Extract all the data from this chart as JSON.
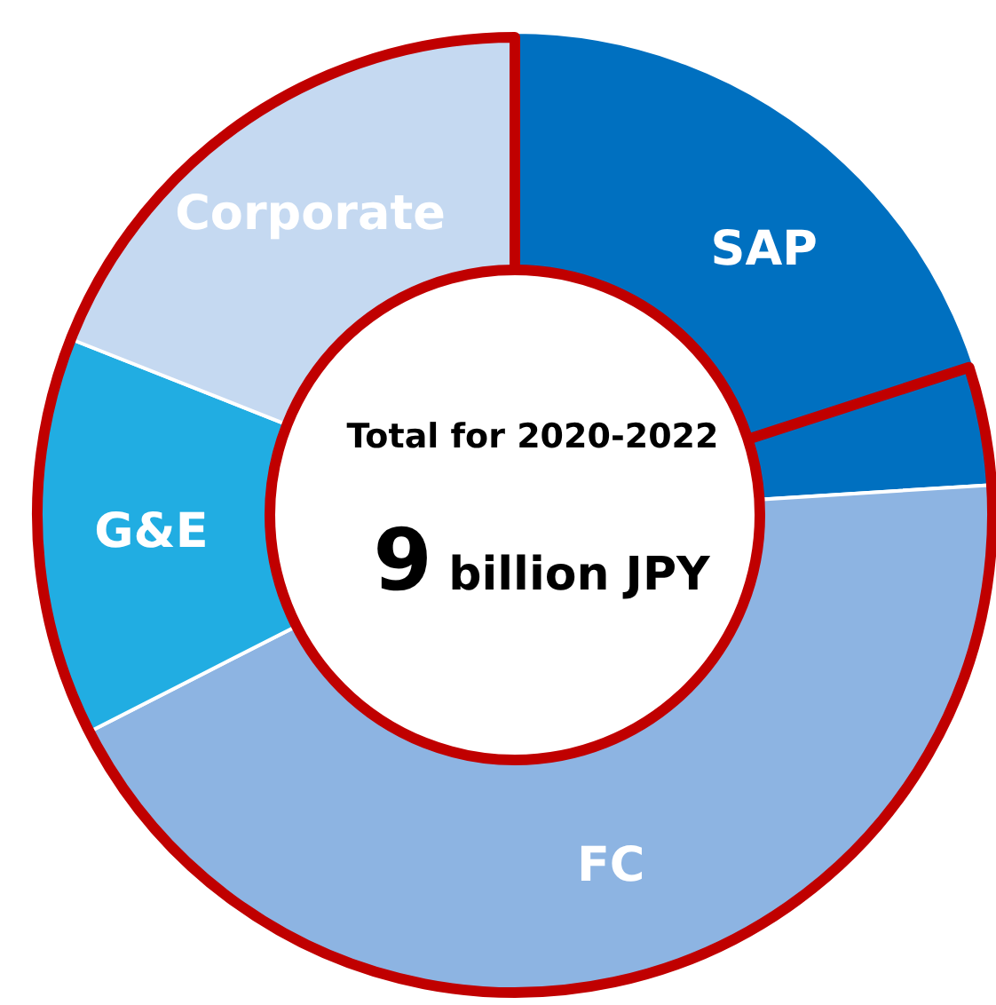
{
  "chart_data": {
    "type": "donut",
    "categories": [
      "SAP",
      "FC",
      "G&E",
      "Corporate"
    ],
    "values": [
      24,
      43.5,
      13.5,
      19
    ],
    "colors": [
      "#0070c0",
      "#8db4e2",
      "#21ade2",
      "#c5d9f1"
    ],
    "annotations": [
      "Total for 2020-2022",
      "9 billion JPY"
    ],
    "legend": false
  }
}
